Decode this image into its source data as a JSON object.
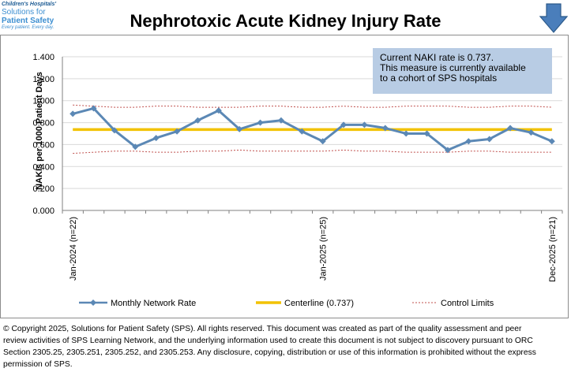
{
  "logo": {
    "line1": "Children's Hospitals'",
    "line2": "Solutions for",
    "line3": "Patient Safety",
    "line4": "Every patient. Every day."
  },
  "header": {
    "title": "Nephrotoxic Acute Kidney Injury Rate",
    "trend_icon": "down-arrow-icon"
  },
  "annotation": {
    "line1": "Current  NAKI rate is 0.737.",
    "line2": "This measure is currently available",
    "line3": "to a cohort of SPS hospitals"
  },
  "legend": {
    "series": "Monthly Network Rate",
    "centerline": "Centerline (0.737)",
    "control": "Control Limits"
  },
  "footer": {
    "line1": "© Copyright 2025, Solutions for Patient Safety (SPS).  All rights reserved.  This document was created as part of the quality assessment and peer",
    "line2": "review activities of SPS Learning Network, and the underlying information used to create this document is not subject to discovery pursuant to ORC",
    "line3": "Section 2305.25, 2305.251, 2305.252, and 2305.253. Any disclosure, copying, distribution or use of this information is prohibited without the express",
    "line4": "permission of SPS."
  },
  "colors": {
    "series": "#5b88b5",
    "centerline": "#f2c200",
    "control": "#c0504d",
    "grid": "#d9d9d9",
    "annotation_bg": "#b8cce4",
    "logo": "#3d8fd1",
    "arrow": "#4a7ebb"
  },
  "chart_data": {
    "type": "line",
    "title": "Nephrotoxic Acute Kidney Injury Rate",
    "ylabel": "NAKIs per 1000 Patient Days",
    "xlabel": "",
    "ylim": [
      0,
      1.4
    ],
    "yticks": [
      "0.000",
      "0.200",
      "0.400",
      "0.600",
      "0.800",
      "1.000",
      "1.200",
      "1.400"
    ],
    "grid": true,
    "legend_position": "bottom",
    "x_labels": [
      "Jan-2024 (n=22)",
      "Jan-2025 (n=25)",
      "Dec-2025 (n=21)"
    ],
    "x_label_index": [
      0,
      12,
      23
    ],
    "series": [
      {
        "name": "Monthly Network Rate",
        "values": [
          0.88,
          0.93,
          0.73,
          0.58,
          0.66,
          0.72,
          0.82,
          0.91,
          0.74,
          0.8,
          0.82,
          0.72,
          0.63,
          0.78,
          0.78,
          0.75,
          0.7,
          0.7,
          0.55,
          0.63,
          0.65,
          0.75,
          0.71,
          0.63
        ]
      }
    ],
    "centerline": 0.737,
    "ucl": [
      0.96,
      0.95,
      0.94,
      0.94,
      0.95,
      0.95,
      0.94,
      0.94,
      0.94,
      0.95,
      0.95,
      0.94,
      0.94,
      0.95,
      0.94,
      0.94,
      0.95,
      0.95,
      0.95,
      0.94,
      0.94,
      0.95,
      0.95,
      0.94
    ],
    "lcl": [
      0.52,
      0.53,
      0.54,
      0.54,
      0.53,
      0.53,
      0.54,
      0.54,
      0.55,
      0.54,
      0.54,
      0.54,
      0.54,
      0.55,
      0.54,
      0.54,
      0.53,
      0.53,
      0.53,
      0.54,
      0.54,
      0.53,
      0.53,
      0.53
    ]
  }
}
